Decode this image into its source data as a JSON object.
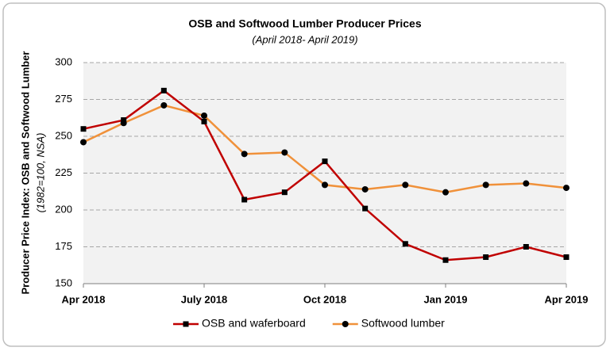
{
  "chart_data": {
    "type": "line",
    "title": "OSB and Softwood Lumber Producer Prices",
    "subtitle": "(April 2018- April 2019)",
    "y_label": "Producer Price Index: OSB and Softwood Lumber",
    "y_label_note": "(1982=100, NSA)",
    "categories": [
      "Apr 2018",
      null,
      null,
      "July 2018",
      null,
      null,
      "Oct 2018",
      null,
      null,
      "Jan 2019",
      null,
      null,
      "Apr 2019"
    ],
    "series": [
      {
        "name": "OSB and waferboard",
        "color": "#c00000",
        "marker": "square",
        "values": [
          255,
          261,
          281,
          260,
          207,
          212,
          233,
          201,
          177,
          166,
          168,
          175,
          168
        ]
      },
      {
        "name": "Softwood lumber",
        "color": "#f0913a",
        "marker": "circle",
        "values": [
          246,
          259,
          271,
          264,
          238,
          239,
          217,
          214,
          217,
          212,
          217,
          218,
          215
        ]
      }
    ],
    "ylim": [
      150,
      300
    ],
    "yticks": [
      150,
      175,
      200,
      225,
      250,
      275,
      300
    ],
    "grid": true
  }
}
